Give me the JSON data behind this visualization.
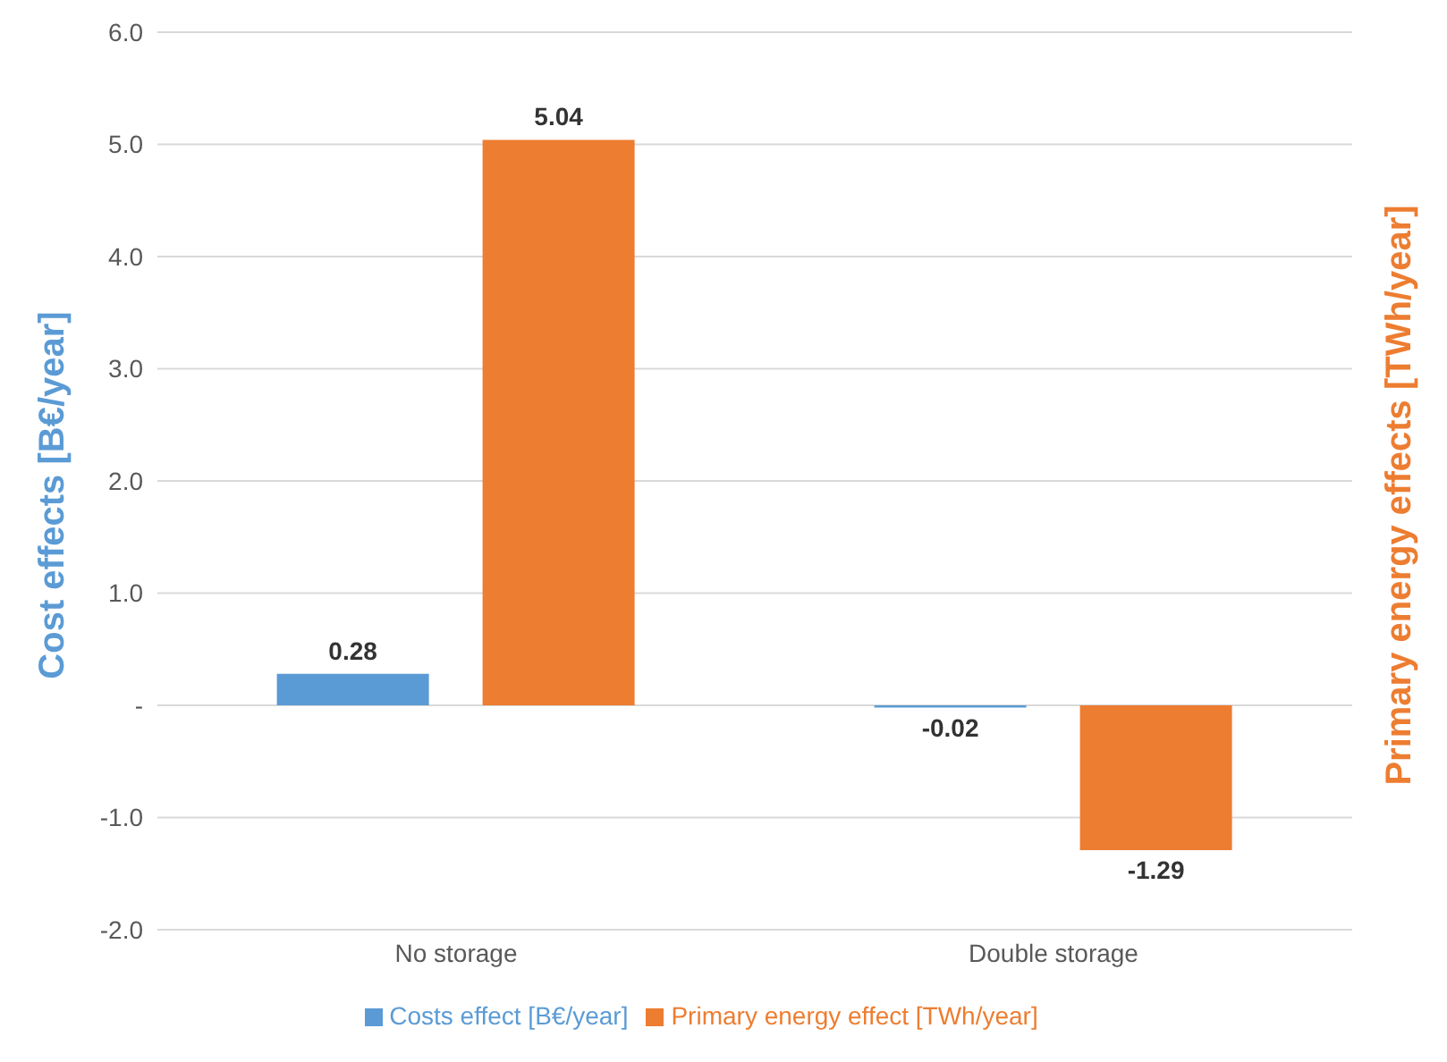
{
  "chart_data": {
    "type": "bar",
    "ylabel": "Cost effects [B€/year]",
    "y2label": "Primary energy effects [TWh/year]",
    "categories": [
      "No storage",
      "Double storage"
    ],
    "series": [
      {
        "name": "Costs effect  [B€/year]",
        "color": "#5b9bd5",
        "values": [
          0.28,
          -0.02
        ]
      },
      {
        "name": "Primary energy effect  [TWh/year]",
        "color": "#ed7d31",
        "values": [
          5.04,
          -1.29
        ]
      }
    ],
    "ylim": [
      -2,
      6
    ],
    "yticks": [
      {
        "value": -2,
        "label": "-2.0"
      },
      {
        "value": -1,
        "label": "-1.0"
      },
      {
        "value": 0,
        "label": "-"
      },
      {
        "value": 1,
        "label": "1.0"
      },
      {
        "value": 2,
        "label": "2.0"
      },
      {
        "value": 3,
        "label": "3.0"
      },
      {
        "value": 4,
        "label": "4.0"
      },
      {
        "value": 5,
        "label": "5.0"
      },
      {
        "value": 6,
        "label": "6.0"
      }
    ],
    "grid": "y",
    "legend": "bottom",
    "data_labels": true
  }
}
